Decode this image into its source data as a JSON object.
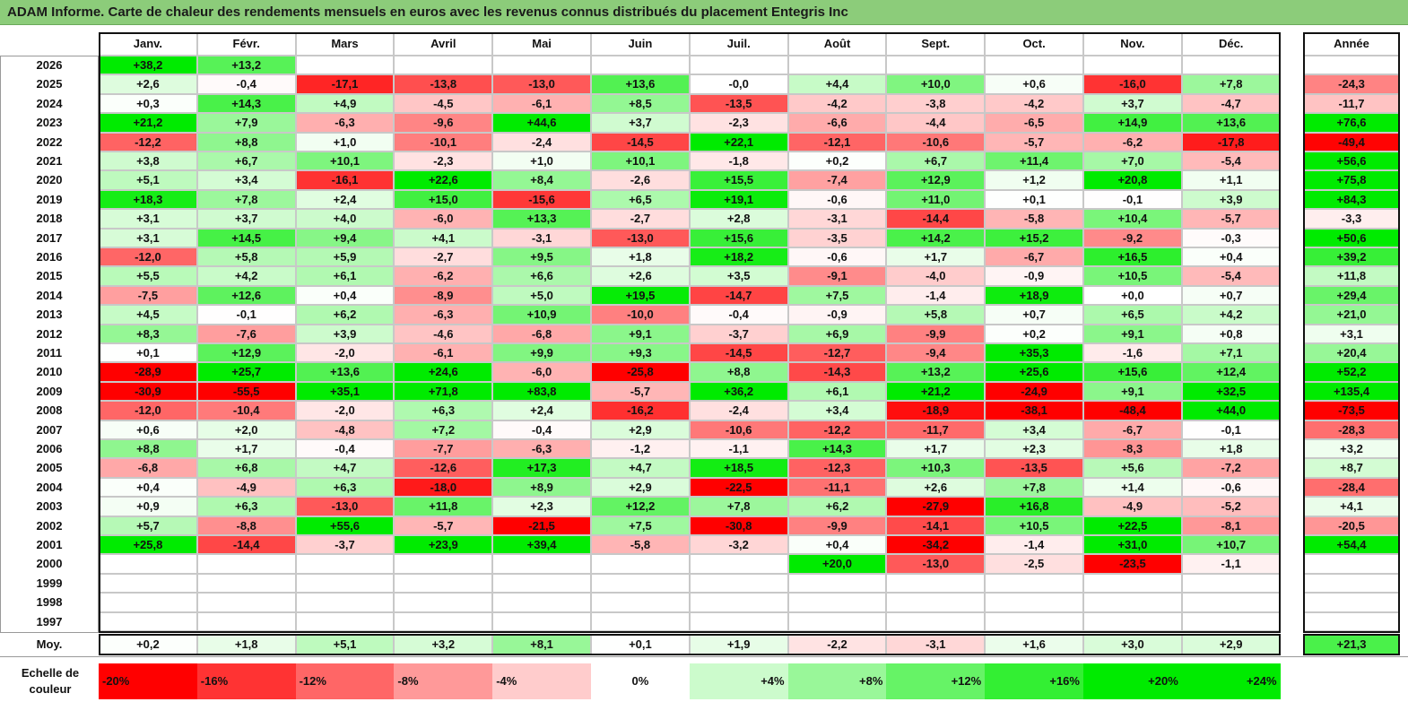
{
  "title": "ADAM Informe. Carte de chaleur des rendements mensuels en euros avec les revenus connus distribués du placement Entegris Inc",
  "chart_data": {
    "type": "heatmap",
    "title": "ADAM Informe. Carte de chaleur des rendements mensuels en euros avec les revenus connus distribués du placement Entegris Inc",
    "columns": [
      "Janv.",
      "Févr.",
      "Mars",
      "Avril",
      "Mai",
      "Juin",
      "Juil.",
      "Août",
      "Sept.",
      "Oct.",
      "Nov.",
      "Déc."
    ],
    "year_header": "Année",
    "rows": [
      {
        "year": "2026",
        "values": [
          "+38,2",
          "+13,2",
          "",
          "",
          "",
          "",
          "",
          "",
          "",
          "",
          "",
          ""
        ],
        "total": ""
      },
      {
        "year": "2025",
        "values": [
          "+2,6",
          "-0,4",
          "-17,1",
          "-13,8",
          "-13,0",
          "+13,6",
          "-0,0",
          "+4,4",
          "+10,0",
          "+0,6",
          "-16,0",
          "+7,8"
        ],
        "total": "-24,3"
      },
      {
        "year": "2024",
        "values": [
          "+0,3",
          "+14,3",
          "+4,9",
          "-4,5",
          "-6,1",
          "+8,5",
          "-13,5",
          "-4,2",
          "-3,8",
          "-4,2",
          "+3,7",
          "-4,7"
        ],
        "total": "-11,7"
      },
      {
        "year": "2023",
        "values": [
          "+21,2",
          "+7,9",
          "-6,3",
          "-9,6",
          "+44,6",
          "+3,7",
          "-2,3",
          "-6,6",
          "-4,4",
          "-6,5",
          "+14,9",
          "+13,6"
        ],
        "total": "+76,6"
      },
      {
        "year": "2022",
        "values": [
          "-12,2",
          "+8,8",
          "+1,0",
          "-10,1",
          "-2,4",
          "-14,5",
          "+22,1",
          "-12,1",
          "-10,6",
          "-5,7",
          "-6,2",
          "-17,8"
        ],
        "total": "-49,4"
      },
      {
        "year": "2021",
        "values": [
          "+3,8",
          "+6,7",
          "+10,1",
          "-2,3",
          "+1,0",
          "+10,1",
          "-1,8",
          "+0,2",
          "+6,7",
          "+11,4",
          "+7,0",
          "-5,4"
        ],
        "total": "+56,6"
      },
      {
        "year": "2020",
        "values": [
          "+5,1",
          "+3,4",
          "-16,1",
          "+22,6",
          "+8,4",
          "-2,6",
          "+15,5",
          "-7,4",
          "+12,9",
          "+1,2",
          "+20,8",
          "+1,1"
        ],
        "total": "+75,8"
      },
      {
        "year": "2019",
        "values": [
          "+18,3",
          "+7,8",
          "+2,4",
          "+15,0",
          "-15,6",
          "+6,5",
          "+19,1",
          "-0,6",
          "+11,0",
          "+0,1",
          "-0,1",
          "+3,9"
        ],
        "total": "+84,3"
      },
      {
        "year": "2018",
        "values": [
          "+3,1",
          "+3,7",
          "+4,0",
          "-6,0",
          "+13,3",
          "-2,7",
          "+2,8",
          "-3,1",
          "-14,4",
          "-5,8",
          "+10,4",
          "-5,7"
        ],
        "total": "-3,3"
      },
      {
        "year": "2017",
        "values": [
          "+3,1",
          "+14,5",
          "+9,4",
          "+4,1",
          "-3,1",
          "-13,0",
          "+15,6",
          "-3,5",
          "+14,2",
          "+15,2",
          "-9,2",
          "-0,3"
        ],
        "total": "+50,6"
      },
      {
        "year": "2016",
        "values": [
          "-12,0",
          "+5,8",
          "+5,9",
          "-2,7",
          "+9,5",
          "+1,8",
          "+18,2",
          "-0,6",
          "+1,7",
          "-6,7",
          "+16,5",
          "+0,4"
        ],
        "total": "+39,2"
      },
      {
        "year": "2015",
        "values": [
          "+5,5",
          "+4,2",
          "+6,1",
          "-6,2",
          "+6,6",
          "+2,6",
          "+3,5",
          "-9,1",
          "-4,0",
          "-0,9",
          "+10,5",
          "-5,4"
        ],
        "total": "+11,8"
      },
      {
        "year": "2014",
        "values": [
          "-7,5",
          "+12,6",
          "+0,4",
          "-8,9",
          "+5,0",
          "+19,5",
          "-14,7",
          "+7,5",
          "-1,4",
          "+18,9",
          "+0,0",
          "+0,7"
        ],
        "total": "+29,4"
      },
      {
        "year": "2013",
        "values": [
          "+4,5",
          "-0,1",
          "+6,2",
          "-6,3",
          "+10,9",
          "-10,0",
          "-0,4",
          "-0,9",
          "+5,8",
          "+0,7",
          "+6,5",
          "+4,2"
        ],
        "total": "+21,0"
      },
      {
        "year": "2012",
        "values": [
          "+8,3",
          "-7,6",
          "+3,9",
          "-4,6",
          "-6,8",
          "+9,1",
          "-3,7",
          "+6,9",
          "-9,9",
          "+0,2",
          "+9,1",
          "+0,8"
        ],
        "total": "+3,1"
      },
      {
        "year": "2011",
        "values": [
          "+0,1",
          "+12,9",
          "-2,0",
          "-6,1",
          "+9,9",
          "+9,3",
          "-14,5",
          "-12,7",
          "-9,4",
          "+35,3",
          "-1,6",
          "+7,1"
        ],
        "total": "+20,4"
      },
      {
        "year": "2010",
        "values": [
          "-28,9",
          "+25,7",
          "+13,6",
          "+24,6",
          "-6,0",
          "-25,8",
          "+8,8",
          "-14,3",
          "+13,2",
          "+25,6",
          "+15,6",
          "+12,4"
        ],
        "total": "+52,2"
      },
      {
        "year": "2009",
        "values": [
          "-30,9",
          "-55,5",
          "+35,1",
          "+71,8",
          "+83,8",
          "-5,7",
          "+36,2",
          "+6,1",
          "+21,2",
          "-24,9",
          "+9,1",
          "+32,5"
        ],
        "total": "+135,4"
      },
      {
        "year": "2008",
        "values": [
          "-12,0",
          "-10,4",
          "-2,0",
          "+6,3",
          "+2,4",
          "-16,2",
          "-2,4",
          "+3,4",
          "-18,9",
          "-38,1",
          "-48,4",
          "+44,0"
        ],
        "total": "-73,5"
      },
      {
        "year": "2007",
        "values": [
          "+0,6",
          "+2,0",
          "-4,8",
          "+7,2",
          "-0,4",
          "+2,9",
          "-10,6",
          "-12,2",
          "-11,7",
          "+3,4",
          "-6,7",
          "-0,1"
        ],
        "total": "-28,3"
      },
      {
        "year": "2006",
        "values": [
          "+8,8",
          "+1,7",
          "-0,4",
          "-7,7",
          "-6,3",
          "-1,2",
          "-1,1",
          "+14,3",
          "+1,7",
          "+2,3",
          "-8,3",
          "+1,8"
        ],
        "total": "+3,2"
      },
      {
        "year": "2005",
        "values": [
          "-6,8",
          "+6,8",
          "+4,7",
          "-12,6",
          "+17,3",
          "+4,7",
          "+18,5",
          "-12,3",
          "+10,3",
          "-13,5",
          "+5,6",
          "-7,2"
        ],
        "total": "+8,7"
      },
      {
        "year": "2004",
        "values": [
          "+0,4",
          "-4,9",
          "+6,3",
          "-18,0",
          "+8,9",
          "+2,9",
          "-22,5",
          "-11,1",
          "+2,6",
          "+7,8",
          "+1,4",
          "-0,6"
        ],
        "total": "-28,4"
      },
      {
        "year": "2003",
        "values": [
          "+0,9",
          "+6,3",
          "-13,0",
          "+11,8",
          "+2,3",
          "+12,2",
          "+7,8",
          "+6,2",
          "-27,9",
          "+16,8",
          "-4,9",
          "-5,2"
        ],
        "total": "+4,1"
      },
      {
        "year": "2002",
        "values": [
          "+5,7",
          "-8,8",
          "+55,6",
          "-5,7",
          "-21,5",
          "+7,5",
          "-30,8",
          "-9,9",
          "-14,1",
          "+10,5",
          "+22,5",
          "-8,1"
        ],
        "total": "-20,5"
      },
      {
        "year": "2001",
        "values": [
          "+25,8",
          "-14,4",
          "-3,7",
          "+23,9",
          "+39,4",
          "-5,8",
          "-3,2",
          "+0,4",
          "-34,2",
          "-1,4",
          "+31,0",
          "+10,7"
        ],
        "total": "+54,4"
      },
      {
        "year": "2000",
        "values": [
          "",
          "",
          "",
          "",
          "",
          "",
          "",
          "+20,0",
          "-13,0",
          "-2,5",
          "-23,5",
          "-1,1"
        ],
        "total": ""
      },
      {
        "year": "1999",
        "values": [
          "",
          "",
          "",
          "",
          "",
          "",
          "",
          "",
          "",
          "",
          "",
          ""
        ],
        "total": ""
      },
      {
        "year": "1998",
        "values": [
          "",
          "",
          "",
          "",
          "",
          "",
          "",
          "",
          "",
          "",
          "",
          ""
        ],
        "total": ""
      },
      {
        "year": "1997",
        "values": [
          "",
          "",
          "",
          "",
          "",
          "",
          "",
          "",
          "",
          "",
          "",
          ""
        ],
        "total": ""
      }
    ],
    "average": {
      "label": "Moy.",
      "values": [
        "+0,2",
        "+1,8",
        "+5,1",
        "+3,2",
        "+8,1",
        "+0,1",
        "+1,9",
        "-2,2",
        "-3,1",
        "+1,6",
        "+3,0",
        "+2,9"
      ],
      "total": "+21,3"
    },
    "color_scale": {
      "label": "Echelle de couleur",
      "steps": [
        "-20%",
        "-16%",
        "-12%",
        "-8%",
        "-4%",
        "0%",
        "+4%",
        "+8%",
        "+12%",
        "+16%",
        "+20%",
        "+24%"
      ]
    },
    "colors": {
      "negative": "#ff0000",
      "neutral": "#ffffff",
      "positive": "#00e600"
    }
  }
}
